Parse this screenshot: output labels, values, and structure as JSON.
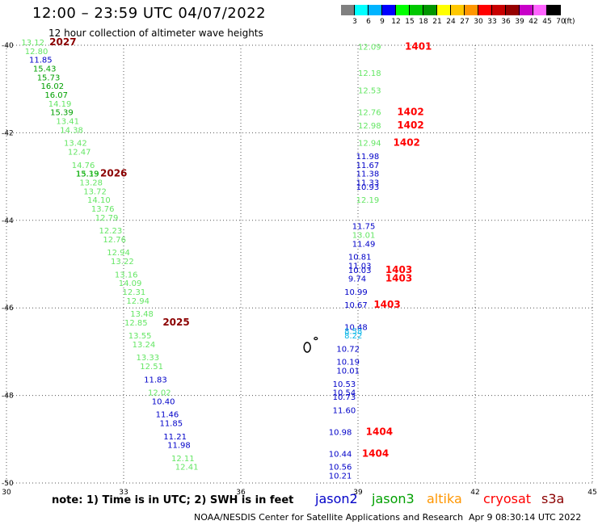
{
  "header": {
    "title": "12:00 – 23:59 UTC 04/07/2022",
    "subtitle": "12 hour collection of altimeter wave heights"
  },
  "colorbar": {
    "ticks": [
      "3",
      "6",
      "9",
      "12",
      "15",
      "18",
      "21",
      "24",
      "27",
      "30",
      "33",
      "36",
      "39",
      "42",
      "45",
      "70"
    ],
    "unit": "(ft)",
    "colors": [
      "#808080",
      "#00ffff",
      "#00b4ff",
      "#0000ff",
      "#00ff00",
      "#00c800",
      "#009600",
      "#ffff00",
      "#ffc800",
      "#ff9600",
      "#ff0000",
      "#c80000",
      "#960000",
      "#c800c8",
      "#ff64ff",
      "#000000"
    ]
  },
  "footer": {
    "note": "note:  1) Time is in UTC; 2) SWH is in feet",
    "credit": "NOAA/NESDIS Center for Satellite Applications and Research",
    "timestamp": "Apr  9 08:30:14 UTC 2022"
  },
  "satellites": [
    {
      "name": "jason2",
      "color": "#0000c8"
    },
    {
      "name": "jason3",
      "color": "#00a000"
    },
    {
      "name": "altika",
      "color": "#ff9600"
    },
    {
      "name": "cryosat",
      "color": "#ff0000"
    },
    {
      "name": "s3a",
      "color": "#8b0000"
    }
  ],
  "chart_data": {
    "type": "scatter",
    "xlim": [
      30,
      45
    ],
    "ylim": [
      -50,
      -40
    ],
    "xticks": [
      "30",
      "33",
      "36",
      "39",
      "42",
      "45"
    ],
    "yticks": [
      "-40",
      "-42",
      "-44",
      "-46",
      "-48",
      "-50"
    ],
    "grid": true,
    "colors": {
      "lightgreen": "#64e664",
      "green": "#00a000",
      "blue": "#0000c8",
      "cyan": "#00b4e6",
      "red": "#ff0000",
      "darkred": "#8b0000"
    },
    "points": [
      {
        "x": 30.38,
        "y": -40.0,
        "label": "13.12",
        "c": "lightgreen"
      },
      {
        "x": 30.47,
        "y": -40.2,
        "label": "12.80",
        "c": "lightgreen"
      },
      {
        "x": 30.58,
        "y": -40.4,
        "label": "11.85",
        "c": "blue"
      },
      {
        "x": 30.68,
        "y": -40.6,
        "label": "15.43",
        "c": "green"
      },
      {
        "x": 30.78,
        "y": -40.8,
        "label": "15.73",
        "c": "green"
      },
      {
        "x": 30.88,
        "y": -41.0,
        "label": "16.02",
        "c": "green"
      },
      {
        "x": 30.98,
        "y": -41.2,
        "label": "16.07",
        "c": "green"
      },
      {
        "x": 31.07,
        "y": -41.4,
        "label": "14.19",
        "c": "lightgreen"
      },
      {
        "x": 31.12,
        "y": -41.6,
        "label": "15.39",
        "c": "green"
      },
      {
        "x": 31.27,
        "y": -41.8,
        "label": "13.41",
        "c": "lightgreen"
      },
      {
        "x": 31.37,
        "y": -42.0,
        "label": "14.38",
        "c": "lightgreen"
      },
      {
        "x": 31.47,
        "y": -42.3,
        "label": "13.42",
        "c": "lightgreen"
      },
      {
        "x": 31.57,
        "y": -42.5,
        "label": "12.47",
        "c": "lightgreen"
      },
      {
        "x": 31.67,
        "y": -42.8,
        "label": "14.76",
        "c": "lightgreen"
      },
      {
        "x": 31.77,
        "y": -43.0,
        "label": "13.33",
        "c": "lightgreen"
      },
      {
        "x": 31.78,
        "y": -43.0,
        "label": "15.19",
        "c": "green"
      },
      {
        "x": 31.87,
        "y": -43.2,
        "label": "13.28",
        "c": "lightgreen"
      },
      {
        "x": 31.97,
        "y": -43.4,
        "label": "13.72",
        "c": "lightgreen"
      },
      {
        "x": 32.07,
        "y": -43.6,
        "label": "14.10",
        "c": "lightgreen"
      },
      {
        "x": 32.17,
        "y": -43.8,
        "label": "13.76",
        "c": "lightgreen"
      },
      {
        "x": 32.27,
        "y": -44.0,
        "label": "12.79",
        "c": "lightgreen"
      },
      {
        "x": 32.37,
        "y": -44.3,
        "label": "12.23",
        "c": "lightgreen"
      },
      {
        "x": 32.47,
        "y": -44.5,
        "label": "12.76",
        "c": "lightgreen"
      },
      {
        "x": 32.57,
        "y": -44.8,
        "label": "12.94",
        "c": "lightgreen"
      },
      {
        "x": 32.67,
        "y": -45.0,
        "label": "13.22",
        "c": "lightgreen"
      },
      {
        "x": 32.77,
        "y": -45.3,
        "label": "13.16",
        "c": "lightgreen"
      },
      {
        "x": 32.87,
        "y": -45.5,
        "label": "14.09",
        "c": "lightgreen"
      },
      {
        "x": 32.97,
        "y": -45.7,
        "label": "12.31",
        "c": "lightgreen"
      },
      {
        "x": 33.07,
        "y": -45.9,
        "label": "12.94",
        "c": "lightgreen"
      },
      {
        "x": 33.17,
        "y": -46.2,
        "label": "13.48",
        "c": "lightgreen"
      },
      {
        "x": 33.02,
        "y": -46.4,
        "label": "12.85",
        "c": "lightgreen"
      },
      {
        "x": 33.12,
        "y": -46.7,
        "label": "13.55",
        "c": "lightgreen"
      },
      {
        "x": 33.22,
        "y": -46.9,
        "label": "13.24",
        "c": "lightgreen"
      },
      {
        "x": 33.32,
        "y": -47.2,
        "label": "13.33",
        "c": "lightgreen"
      },
      {
        "x": 33.42,
        "y": -47.4,
        "label": "12.51",
        "c": "lightgreen"
      },
      {
        "x": 33.52,
        "y": -47.7,
        "label": "11.83",
        "c": "blue"
      },
      {
        "x": 33.62,
        "y": -48.0,
        "label": "12.02",
        "c": "lightgreen"
      },
      {
        "x": 33.72,
        "y": -48.2,
        "label": "10.40",
        "c": "blue"
      },
      {
        "x": 33.82,
        "y": -48.5,
        "label": "11.46",
        "c": "blue"
      },
      {
        "x": 33.92,
        "y": -48.7,
        "label": "11.85",
        "c": "blue"
      },
      {
        "x": 34.02,
        "y": -49.0,
        "label": "11.21",
        "c": "blue"
      },
      {
        "x": 34.12,
        "y": -49.2,
        "label": "11.98",
        "c": "blue"
      },
      {
        "x": 34.22,
        "y": -49.5,
        "label": "12.11",
        "c": "lightgreen"
      },
      {
        "x": 34.32,
        "y": -49.7,
        "label": "12.41",
        "c": "lightgreen"
      },
      {
        "x": 39.0,
        "y": -40.1,
        "label": "12.09",
        "c": "lightgreen"
      },
      {
        "x": 39.0,
        "y": -40.7,
        "label": "12.18",
        "c": "lightgreen"
      },
      {
        "x": 39.0,
        "y": -41.1,
        "label": "12.53",
        "c": "lightgreen"
      },
      {
        "x": 39.0,
        "y": -41.6,
        "label": "12.76",
        "c": "lightgreen"
      },
      {
        "x": 39.0,
        "y": -41.9,
        "label": "12.98",
        "c": "lightgreen"
      },
      {
        "x": 39.0,
        "y": -42.3,
        "label": "12.94",
        "c": "lightgreen"
      },
      {
        "x": 38.95,
        "y": -42.6,
        "label": "11.98",
        "c": "blue"
      },
      {
        "x": 38.95,
        "y": -42.8,
        "label": "11.67",
        "c": "blue"
      },
      {
        "x": 38.95,
        "y": -43.0,
        "label": "11.38",
        "c": "blue"
      },
      {
        "x": 38.95,
        "y": -43.2,
        "label": "11.33",
        "c": "blue"
      },
      {
        "x": 38.95,
        "y": -43.3,
        "label": "10.93",
        "c": "blue"
      },
      {
        "x": 38.95,
        "y": -43.6,
        "label": "12.19",
        "c": "lightgreen"
      },
      {
        "x": 38.85,
        "y": -44.2,
        "label": "11.75",
        "c": "blue"
      },
      {
        "x": 38.85,
        "y": -44.4,
        "label": "13.01",
        "c": "lightgreen"
      },
      {
        "x": 38.85,
        "y": -44.6,
        "label": "11.49",
        "c": "blue"
      },
      {
        "x": 38.75,
        "y": -44.9,
        "label": "10.81",
        "c": "blue"
      },
      {
        "x": 38.75,
        "y": -45.1,
        "label": "11.03",
        "c": "blue"
      },
      {
        "x": 38.75,
        "y": -45.2,
        "label": "10.03",
        "c": "blue"
      },
      {
        "x": 38.75,
        "y": -45.4,
        "label": "9.74",
        "c": "blue"
      },
      {
        "x": 38.65,
        "y": -45.7,
        "label": "10.99",
        "c": "blue"
      },
      {
        "x": 38.65,
        "y": -46.0,
        "label": "10.67",
        "c": "blue"
      },
      {
        "x": 38.65,
        "y": -46.5,
        "label": "10.48",
        "c": "blue"
      },
      {
        "x": 38.65,
        "y": -46.6,
        "label": "8.58",
        "c": "cyan"
      },
      {
        "x": 38.65,
        "y": -46.7,
        "label": "8.22",
        "c": "cyan"
      },
      {
        "x": 38.45,
        "y": -47.0,
        "label": "10.72",
        "c": "blue"
      },
      {
        "x": 38.45,
        "y": -47.3,
        "label": "10.19",
        "c": "blue"
      },
      {
        "x": 38.45,
        "y": -47.5,
        "label": "10.01",
        "c": "blue"
      },
      {
        "x": 38.35,
        "y": -47.8,
        "label": "10.53",
        "c": "blue"
      },
      {
        "x": 38.35,
        "y": -48.0,
        "label": "10.54",
        "c": "blue"
      },
      {
        "x": 38.35,
        "y": -48.1,
        "label": "10.73",
        "c": "blue"
      },
      {
        "x": 38.35,
        "y": -48.4,
        "label": "11.60",
        "c": "blue"
      },
      {
        "x": 38.25,
        "y": -48.9,
        "label": "10.98",
        "c": "blue"
      },
      {
        "x": 38.25,
        "y": -49.4,
        "label": "10.44",
        "c": "blue"
      },
      {
        "x": 38.25,
        "y": -49.7,
        "label": "10.56",
        "c": "blue"
      },
      {
        "x": 38.25,
        "y": -49.9,
        "label": "10.21",
        "c": "blue"
      }
    ],
    "labels": [
      {
        "x": 31.1,
        "y": -40.0,
        "text": "2027",
        "c": "darkred"
      },
      {
        "x": 32.4,
        "y": -43.0,
        "text": "2026",
        "c": "darkred"
      },
      {
        "x": 34.0,
        "y": -46.4,
        "text": "2025",
        "c": "darkred"
      },
      {
        "x": 40.2,
        "y": -40.1,
        "text": "1401",
        "c": "red"
      },
      {
        "x": 40.0,
        "y": -41.6,
        "text": "1402",
        "c": "red"
      },
      {
        "x": 40.0,
        "y": -41.9,
        "text": "1402",
        "c": "red"
      },
      {
        "x": 39.9,
        "y": -42.3,
        "text": "1402",
        "c": "red"
      },
      {
        "x": 39.7,
        "y": -45.2,
        "text": "1403",
        "c": "red"
      },
      {
        "x": 39.7,
        "y": -45.4,
        "text": "1403",
        "c": "red"
      },
      {
        "x": 39.4,
        "y": -46.0,
        "text": "1403",
        "c": "red"
      },
      {
        "x": 39.2,
        "y": -48.9,
        "text": "1404",
        "c": "red"
      },
      {
        "x": 39.1,
        "y": -49.4,
        "text": "1404",
        "c": "red"
      }
    ]
  }
}
